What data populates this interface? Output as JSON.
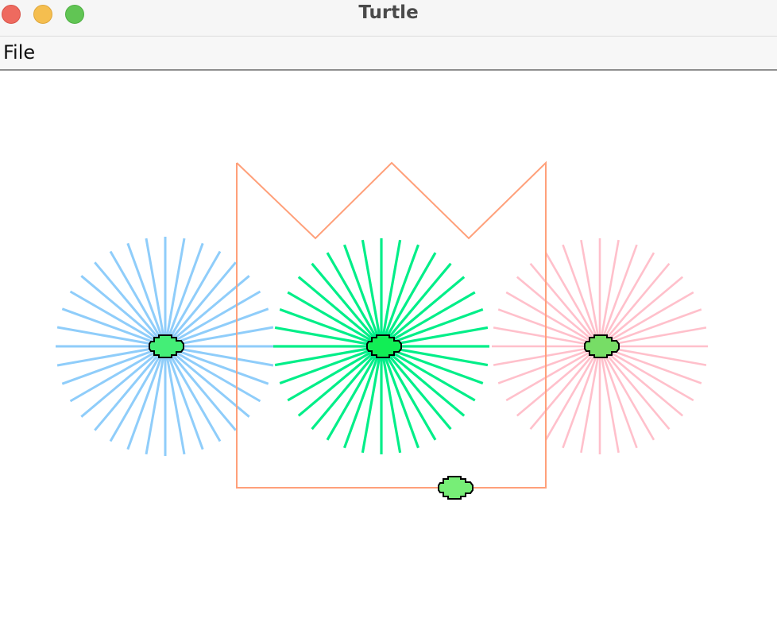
{
  "window": {
    "title": "Turtle",
    "controls": [
      "close",
      "minimize",
      "maximize"
    ]
  },
  "menubar": {
    "items": [
      {
        "label": "File"
      }
    ]
  },
  "canvas": {
    "background": "#ffffff",
    "bursts": [
      {
        "name": "blue",
        "color": "#8fcdfa",
        "rays": 36
      },
      {
        "name": "green",
        "color": "#00ee88",
        "rays": 36
      },
      {
        "name": "pink",
        "color": "#ffc0cb",
        "rays": 36
      }
    ],
    "crown_path_color": "#ffa07a",
    "turtles": [
      {
        "name": "blue-center",
        "color": "#44ee77"
      },
      {
        "name": "green-center",
        "color": "#11ee55"
      },
      {
        "name": "pink-center",
        "color": "#77dd66"
      },
      {
        "name": "bottom",
        "color": "#77ee77"
      }
    ]
  }
}
